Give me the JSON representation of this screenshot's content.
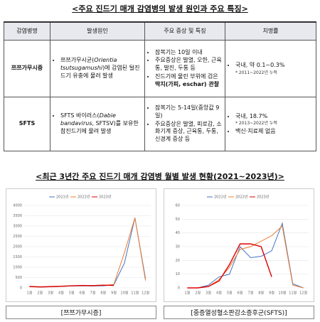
{
  "title": "<주요 진드기 매개 감염병의 발생 원인과 주요 특징>",
  "table": {
    "header": [
      "감염병명",
      "발생원인",
      "주요 증상 및 특징",
      "치명률"
    ],
    "rows": [
      {
        "name": "쯔쯔가무시증",
        "cause": [
          "쯔쯔가무시균(",
          "Orientia tsutsugamushi",
          ")에 감염된 털진드기 유충에 물려 발생"
        ],
        "symptoms": [
          "잠복기는 10일 이내",
          "주요증상은 발열, 오한, 근육통, 발진, 두통 등",
          [
            "진드기에 물린 부위에 검은 ",
            "딱지(가피, eschar) 관찰"
          ]
        ],
        "fatality": [
          "국내, 약 0.1~0.3%",
          "* 2011~2022년 누적"
        ]
      },
      {
        "name": "SFTS",
        "cause": [
          "SFTS 바이러스(",
          "Dabie bandavirus",
          ", SFTSV)를 보유한 참진드기에 물려 발생"
        ],
        "symptoms": [
          "잠복기는 5-14일(중앙값 9일)",
          "주요증상은 발열, 피로감, 소화기계 증상, 근육통, 두통, 신경계 증상 등"
        ],
        "fatality": [
          "국내, 18.7%",
          "* 2013~2022년 누적",
          "백신·치료제 없음"
        ]
      }
    ]
  },
  "chart_heading": "<최근 3년간 주요 진드기 매개 감염병 월별 발생 현황(2021~2023년)>",
  "chart_data": [
    {
      "type": "line",
      "caption": "[쯔쯔가무시증]",
      "categories": [
        "1월",
        "2월",
        "3월",
        "4월",
        "5월",
        "6월",
        "7월",
        "8월",
        "9월",
        "10월",
        "11월",
        "12월"
      ],
      "ylim": [
        0,
        4000
      ],
      "yticks": [
        0,
        500,
        1000,
        1500,
        2000,
        2500,
        3000,
        3500,
        4000
      ],
      "grid": true,
      "series": [
        {
          "name": "2021년",
          "color": "#4472c4",
          "values": [
            60,
            40,
            50,
            70,
            90,
            100,
            90,
            100,
            150,
            1200,
            3400,
            450
          ]
        },
        {
          "name": "2022년",
          "color": "#ed7d31",
          "values": [
            50,
            40,
            60,
            70,
            100,
            110,
            100,
            120,
            170,
            1700,
            3400,
            350
          ]
        },
        {
          "name": "2023년",
          "color": "#e00000",
          "values": [
            70,
            50,
            60,
            80,
            100,
            120,
            110,
            130,
            120,
            null,
            null,
            null
          ]
        }
      ]
    },
    {
      "type": "line",
      "caption": "[중증열성혈소판감소증후군(SFTS)]",
      "categories": [
        "1월",
        "2월",
        "3월",
        "4월",
        "5월",
        "6월",
        "7월",
        "8월",
        "9월",
        "10월",
        "11월",
        "12월"
      ],
      "ylim": [
        0,
        60
      ],
      "yticks": [
        0,
        10,
        20,
        30,
        40,
        50,
        60
      ],
      "grid": true,
      "series": [
        {
          "name": "2021년",
          "color": "#4472c4",
          "values": [
            0,
            0,
            2,
            8,
            10,
            30,
            22,
            23,
            27,
            47,
            3,
            0
          ]
        },
        {
          "name": "2022년",
          "color": "#ed7d31",
          "values": [
            0,
            0,
            1,
            6,
            15,
            28,
            30,
            34,
            38,
            45,
            2,
            0
          ]
        },
        {
          "name": "2023년",
          "color": "#e00000",
          "values": [
            0,
            0,
            1,
            5,
            17,
            32,
            32,
            30,
            8,
            null,
            null,
            null
          ]
        }
      ]
    }
  ]
}
